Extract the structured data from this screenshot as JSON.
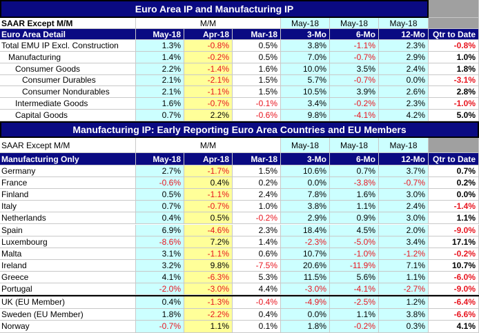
{
  "top": {
    "title": "Euro Area IP and Manufacturing IP",
    "saar_label": "SAAR Except M/M",
    "mm_label": "M/M",
    "may18_a": "May-18",
    "may18_b": "May-18",
    "may18_c": "May-18",
    "detail_label": "Euro Area Detail",
    "col_headers": [
      "May-18",
      "Apr-18",
      "Mar-18",
      "3-Mo",
      "6-Mo",
      "12-Mo",
      "Qtr to Date"
    ],
    "rows": [
      {
        "label": "Total EMU IP Excl. Construction",
        "indent": 0,
        "values": [
          "1.3%",
          "-0.8%",
          "0.5%",
          "3.8%",
          "-1.1%",
          "2.3%",
          "-0.8%"
        ]
      },
      {
        "label": "Manufacturing",
        "indent": 1,
        "values": [
          "1.4%",
          "-0.2%",
          "0.5%",
          "7.0%",
          "-0.7%",
          "2.9%",
          "1.0%"
        ]
      },
      {
        "label": "Consumer Goods",
        "indent": 2,
        "values": [
          "2.2%",
          "-1.4%",
          "1.6%",
          "10.0%",
          "3.5%",
          "2.4%",
          "1.8%"
        ]
      },
      {
        "label": "Consumer Durables",
        "indent": 3,
        "values": [
          "2.1%",
          "-2.1%",
          "1.5%",
          "5.7%",
          "-0.7%",
          "0.0%",
          "-3.1%"
        ]
      },
      {
        "label": "Consumer Nondurables",
        "indent": 3,
        "values": [
          "2.1%",
          "-1.1%",
          "1.5%",
          "10.5%",
          "3.9%",
          "2.6%",
          "2.8%"
        ]
      },
      {
        "label": "Intermediate Goods",
        "indent": 2,
        "values": [
          "1.6%",
          "-0.7%",
          "-0.1%",
          "3.4%",
          "-0.2%",
          "2.3%",
          "-1.0%"
        ]
      },
      {
        "label": "Capital Goods",
        "indent": 2,
        "values": [
          "0.7%",
          "2.2%",
          "-0.6%",
          "9.8%",
          "-4.1%",
          "4.2%",
          "5.0%"
        ]
      }
    ]
  },
  "bottom": {
    "title": "Manufacturing IP: Early Reporting Euro Area Countries and EU Members",
    "saar_label": "SAAR Except M/M",
    "mm_label": "M/M",
    "may18_a": "May-18",
    "may18_b": "May-18",
    "may18_c": "May-18",
    "detail_label": "Manufacturing Only",
    "col_headers": [
      "May-18",
      "Apr-18",
      "Mar-18",
      "3-Mo",
      "6-Mo",
      "12-Mo",
      "Qtr to Date"
    ],
    "rows": [
      {
        "label": "Germany",
        "values": [
          "2.7%",
          "-1.7%",
          "1.5%",
          "10.6%",
          "0.7%",
          "3.7%",
          "0.7%"
        ]
      },
      {
        "label": "France",
        "values": [
          "-0.6%",
          "0.4%",
          "0.2%",
          "0.0%",
          "-3.8%",
          "-0.7%",
          "0.2%"
        ]
      },
      {
        "label": "Finland",
        "values": [
          "0.5%",
          "-1.1%",
          "2.4%",
          "7.8%",
          "1.6%",
          "3.0%",
          "0.0%"
        ]
      },
      {
        "label": "Italy",
        "values": [
          "0.7%",
          "-0.7%",
          "1.0%",
          "3.8%",
          "1.1%",
          "2.4%",
          "-1.4%"
        ]
      },
      {
        "label": "Netherlands",
        "values": [
          "0.4%",
          "0.5%",
          "-0.2%",
          "2.9%",
          "0.9%",
          "3.0%",
          "1.1%"
        ]
      },
      {
        "label": "Spain",
        "values": [
          "6.9%",
          "-4.6%",
          "2.3%",
          "18.4%",
          "4.5%",
          "2.0%",
          "-9.0%"
        ]
      },
      {
        "label": "Luxembourg",
        "values": [
          "-8.6%",
          "7.2%",
          "1.4%",
          "-2.3%",
          "-5.0%",
          "3.4%",
          "17.1%"
        ]
      },
      {
        "label": "Malta",
        "values": [
          "3.1%",
          "-1.1%",
          "0.6%",
          "10.7%",
          "-1.0%",
          "-1.2%",
          "-0.2%"
        ]
      },
      {
        "label": "Ireland",
        "values": [
          "3.2%",
          "9.8%",
          "-7.5%",
          "20.6%",
          "-11.9%",
          "7.1%",
          "10.7%"
        ]
      },
      {
        "label": "Greece",
        "values": [
          "4.1%",
          "-6.3%",
          "5.3%",
          "11.5%",
          "5.6%",
          "1.1%",
          "-6.0%"
        ]
      },
      {
        "label": "Portugal",
        "values": [
          "-2.0%",
          "-3.0%",
          "4.4%",
          "-3.0%",
          "-4.1%",
          "-2.7%",
          "-9.0%"
        ]
      }
    ],
    "eu_rows": [
      {
        "label": "UK (EU Member)",
        "values": [
          "0.4%",
          "-1.3%",
          "-0.4%",
          "-4.9%",
          "-2.5%",
          "1.2%",
          "-6.4%"
        ]
      },
      {
        "label": "Sweden (EU Member)",
        "values": [
          "1.8%",
          "-2.2%",
          "0.4%",
          "0.0%",
          "1.1%",
          "3.8%",
          "-6.6%"
        ]
      },
      {
        "label": "Norway",
        "values": [
          "-0.7%",
          "1.1%",
          "0.1%",
          "1.8%",
          "-0.2%",
          "0.3%",
          "4.1%"
        ]
      }
    ]
  },
  "colors": {
    "header_bg": "#0a0a82",
    "negative": "#e8141e",
    "cyan": "#ccffff",
    "yellow": "#ffff99",
    "grey": "#a0a0a0"
  }
}
